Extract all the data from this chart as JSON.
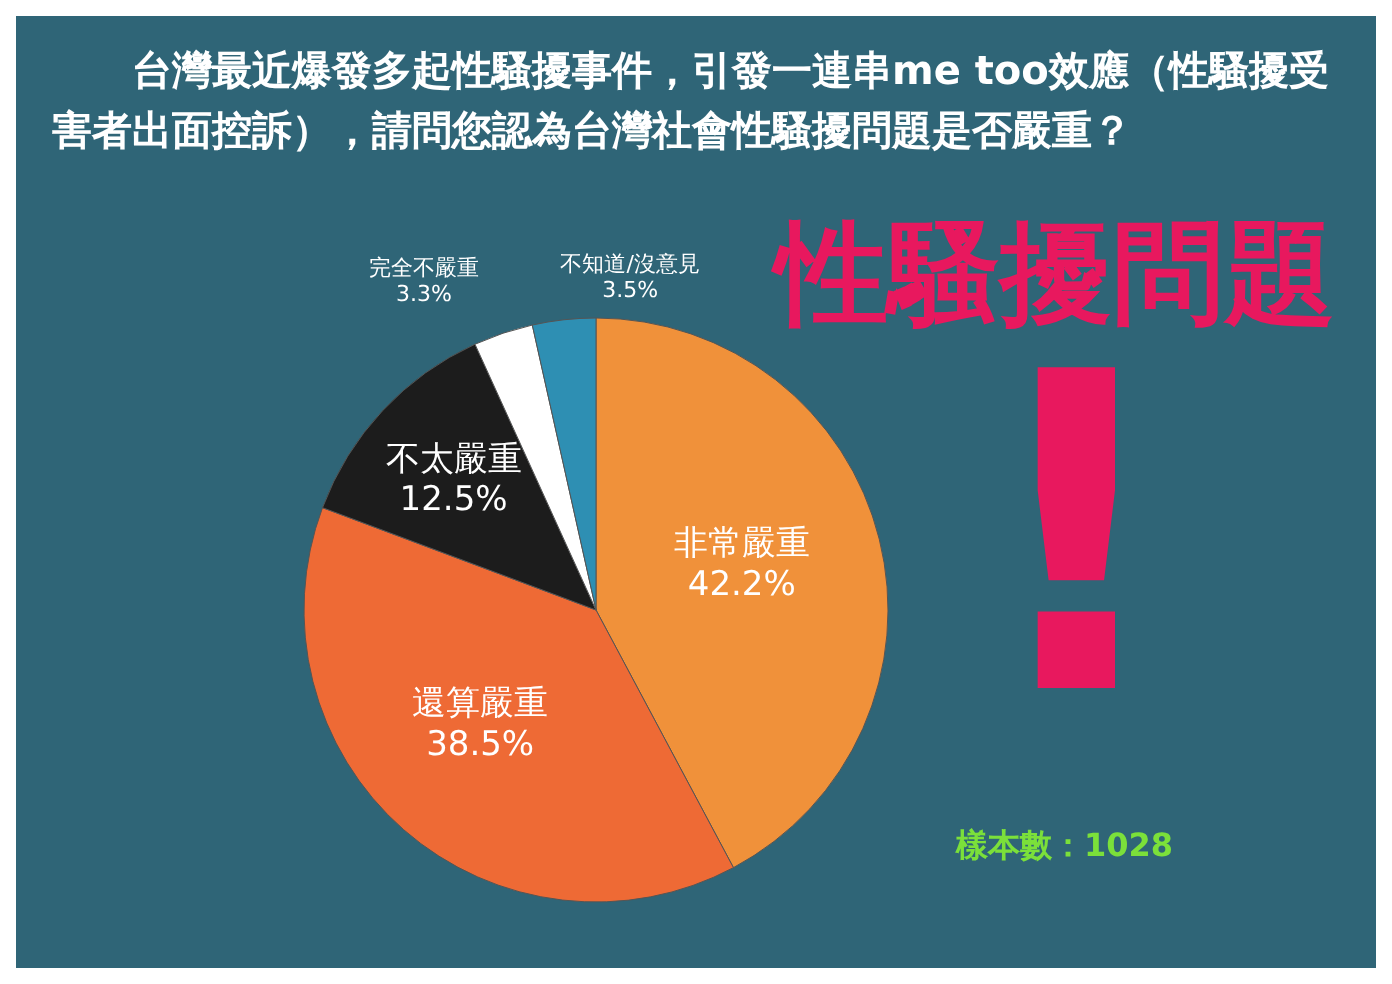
{
  "chart_data": {
    "type": "pie",
    "title": "台灣最近爆發多起性騷擾事件，引發一連串me too效應（性騷擾受害者出面控訴），請問您認為台灣社會性騷擾問題是否嚴重？",
    "categories": [
      "非常嚴重",
      "還算嚴重",
      "不太嚴重",
      "完全不嚴重",
      "不知道/沒意見"
    ],
    "values": [
      42.2,
      38.5,
      12.5,
      3.3,
      3.5
    ],
    "value_labels": [
      "42.2%",
      "38.5%",
      "12.5%",
      "3.3%",
      "3.5%"
    ],
    "colors": [
      "#f0913a",
      "#ee6a35",
      "#1c1c1c",
      "#ffffff",
      "#2e8fb3"
    ],
    "annotations": [
      "性騷擾問題",
      "!",
      "樣本數：1028"
    ]
  }
}
